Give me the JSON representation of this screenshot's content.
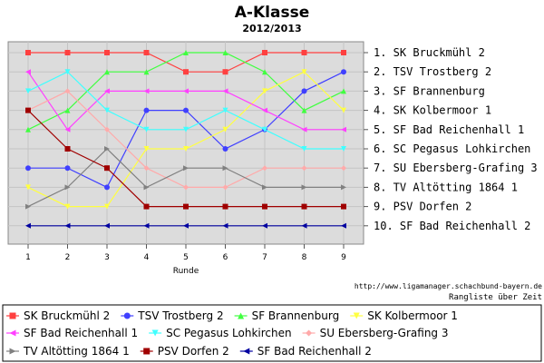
{
  "chart_data": {
    "type": "line",
    "title": "A-Klasse",
    "subtitle": "2012/2013",
    "xlabel": "Runde",
    "x": [
      1,
      2,
      3,
      4,
      5,
      6,
      7,
      8,
      9
    ],
    "ylim": [
      1,
      10
    ],
    "y_inverted": true,
    "grid": true,
    "legend_position": "bottom",
    "rank_labels": [
      "1. SK Bruckmühl 2",
      "2. TSV Trostberg 2",
      "3. SF Brannenburg",
      "4. SK Kolbermoor 1",
      "5. SF Bad Reichenhall 1",
      "6. SC Pegasus Lohkirchen",
      "7. SU Ebersberg-Grafing 3",
      "8. TV Altötting 1864 1",
      "9. PSV Dorfen 2",
      "10. SF Bad Reichenhall 2"
    ],
    "source": "http://www.ligamanager.schachbund-bayern.de",
    "caption": "Rangliste über Zeit",
    "series": [
      {
        "name": "SK Bruckmühl 2",
        "color": "#ff4040",
        "marker": "square",
        "values": [
          1,
          1,
          1,
          1,
          2,
          2,
          1,
          1,
          1
        ]
      },
      {
        "name": "TSV Trostberg 2",
        "color": "#4040ff",
        "marker": "circle",
        "values": [
          7,
          7,
          8,
          4,
          4,
          6,
          5,
          3,
          2
        ]
      },
      {
        "name": "SF Brannenburg",
        "color": "#40ff40",
        "marker": "triangle-up",
        "values": [
          5,
          4,
          2,
          2,
          1,
          1,
          2,
          4,
          3
        ]
      },
      {
        "name": "SK Kolbermoor 1",
        "color": "#ffff40",
        "marker": "triangle-down",
        "values": [
          8,
          9,
          9,
          6,
          6,
          5,
          3,
          2,
          4
        ]
      },
      {
        "name": "SF Bad Reichenhall 1",
        "color": "#ff40ff",
        "marker": "triangle-left",
        "values": [
          2,
          5,
          3,
          3,
          3,
          3,
          4,
          5,
          5
        ]
      },
      {
        "name": "SC Pegasus Lohkirchen",
        "color": "#40ffff",
        "marker": "triangle-down",
        "values": [
          3,
          2,
          4,
          5,
          5,
          4,
          5,
          6,
          6
        ]
      },
      {
        "name": "SU Ebersberg-Grafing 3",
        "color": "#ffaaaa",
        "marker": "diamond",
        "values": [
          4,
          3,
          5,
          7,
          8,
          8,
          7,
          7,
          7
        ]
      },
      {
        "name": "TV Altötting 1864 1",
        "color": "#808080",
        "marker": "triangle-right",
        "values": [
          9,
          8,
          6,
          8,
          7,
          7,
          8,
          8,
          8
        ]
      },
      {
        "name": "PSV Dorfen 2",
        "color": "#a00000",
        "marker": "square",
        "values": [
          4,
          6,
          7,
          9,
          9,
          9,
          9,
          9,
          9
        ]
      },
      {
        "name": "SF Bad Reichenhall 2",
        "color": "#0000a0",
        "marker": "triangle-left",
        "values": [
          10,
          10,
          10,
          10,
          10,
          10,
          10,
          10,
          10
        ]
      }
    ]
  }
}
